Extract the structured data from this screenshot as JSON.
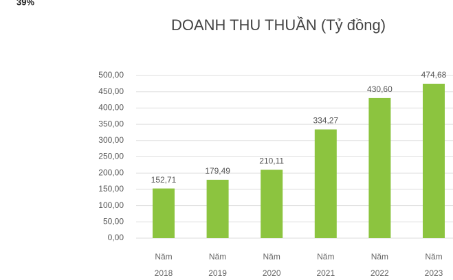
{
  "chart_data": {
    "type": "bar",
    "annotation": "39%",
    "title": "DOANH THU THUẦN (Tỷ đồng)",
    "categories": [
      "Năm 2018",
      "Năm 2019",
      "Năm 2020",
      "Năm 2021",
      "Năm 2022",
      "Năm 2023"
    ],
    "values": [
      152.71,
      179.49,
      210.11,
      334.27,
      430.6,
      474.68
    ],
    "value_labels": [
      "152,71",
      "179,49",
      "210,11",
      "334,27",
      "430,60",
      "474,68"
    ],
    "color": "#8cc43f",
    "ylim": [
      0,
      500
    ],
    "yticks": [
      {
        "value": 0,
        "label": "0,00"
      },
      {
        "value": 50,
        "label": "50,00"
      },
      {
        "value": 100,
        "label": "100,00"
      },
      {
        "value": 150,
        "label": "150,00"
      },
      {
        "value": 200,
        "label": "200,00"
      },
      {
        "value": 250,
        "label": "250,00"
      },
      {
        "value": 300,
        "label": "300,00"
      },
      {
        "value": 350,
        "label": "350,00"
      },
      {
        "value": 400,
        "label": "400,00"
      },
      {
        "value": 450,
        "label": "450,00"
      },
      {
        "value": 500,
        "label": "500,00"
      }
    ],
    "grid": true
  }
}
